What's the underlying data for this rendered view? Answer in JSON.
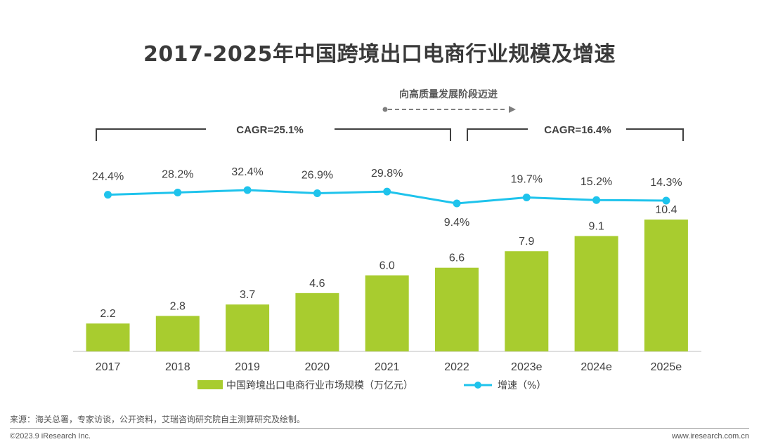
{
  "chart_data": {
    "type": "bar",
    "title": "2017-2025年中国跨境出口电商行业规模及增速",
    "categories": [
      "2017",
      "2018",
      "2019",
      "2020",
      "2021",
      "2022",
      "2023e",
      "2024e",
      "2025e"
    ],
    "series": [
      {
        "name": "中国跨境出口电商行业市场规模（万亿元）",
        "type": "bar",
        "values": [
          2.2,
          2.8,
          3.7,
          4.6,
          6.0,
          6.6,
          7.9,
          9.1,
          10.4
        ],
        "labels": [
          "2.2",
          "2.8",
          "3.7",
          "4.6",
          "6.0",
          "6.6",
          "7.9",
          "9.1",
          "10.4"
        ]
      },
      {
        "name": "增速（%）",
        "type": "line",
        "values": [
          24.4,
          28.2,
          32.4,
          26.9,
          29.8,
          9.4,
          19.7,
          15.2,
          14.3
        ],
        "labels": [
          "24.4%",
          "28.2%",
          "32.4%",
          "26.9%",
          "29.8%",
          "9.4%",
          "19.7%",
          "15.2%",
          "14.3%"
        ]
      }
    ],
    "ylim_bar": [
      0,
      10.4
    ],
    "annotations": {
      "cagr_left": "CAGR=25.1%",
      "cagr_right": "CAGR=16.4%",
      "arrow_text": "向高质量发展阶段迈进"
    },
    "legend": {
      "position": "bottom"
    }
  },
  "colors": {
    "bar": "#a8cc2f",
    "line": "#1ec3ec",
    "bracket": "#404040",
    "arrow": "#7f7f7f"
  },
  "footer": {
    "source": "来源：海关总署，专家访谈，公开资料，艾瑞咨询研究院自主测算研究及绘制。",
    "copyright": "©2023.9 iResearch Inc.",
    "website": "www.iresearch.com.cn"
  }
}
